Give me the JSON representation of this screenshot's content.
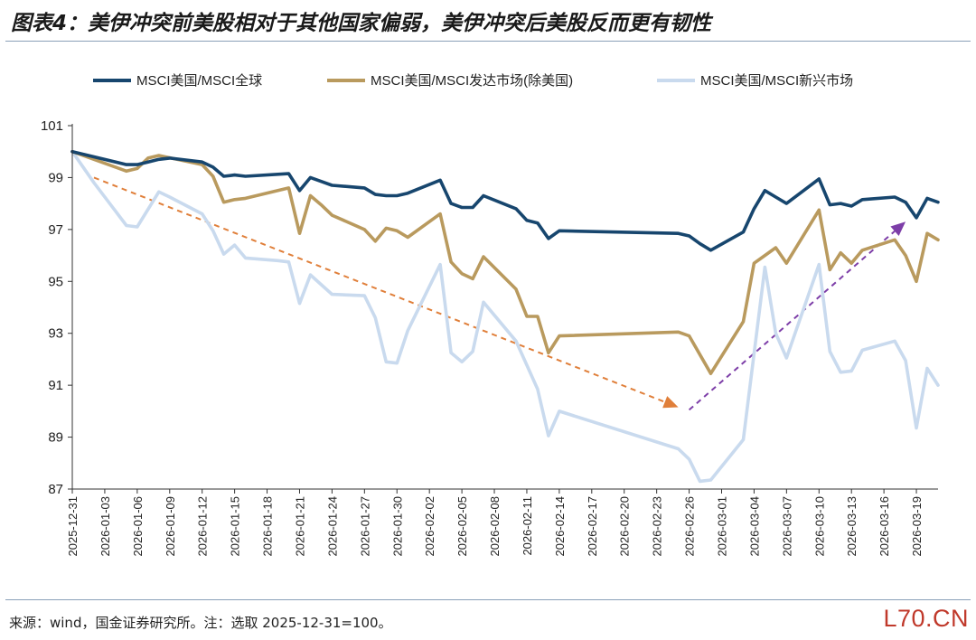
{
  "title": "图表4：美伊冲突前美股相对于其他国家偏弱，美伊冲突后美股反而更有韧性",
  "source": "来源：wind，国金证券研究所。注：选取 2025-12-31=100。",
  "watermark": "L70.CN",
  "chart_data": {
    "type": "line",
    "xlabel": "",
    "ylabel": "",
    "ylim": [
      87,
      101
    ],
    "yticks": [
      87,
      89,
      91,
      93,
      95,
      97,
      99,
      101
    ],
    "xlim": [
      "2025-12-31",
      "2026-03-21"
    ],
    "xticks": [
      "2025-12-31",
      "2026-01-03",
      "2026-01-06",
      "2026-01-09",
      "2026-01-12",
      "2026-01-15",
      "2026-01-18",
      "2026-01-21",
      "2026-01-24",
      "2026-01-27",
      "2026-01-30",
      "2026-02-02",
      "2026-02-05",
      "2026-02-08",
      "2026-02-11",
      "2026-02-14",
      "2026-02-17",
      "2026-02-20",
      "2026-02-23",
      "2026-02-26",
      "2026-03-01",
      "2026-03-04",
      "2026-03-07",
      "2026-03-10",
      "2026-03-13",
      "2026-03-16",
      "2026-03-19"
    ],
    "legend_position": "top",
    "grid": false,
    "series": [
      {
        "name": "MSCI美国/MSCI全球",
        "color": "#17466e",
        "points": [
          [
            "2025-12-31",
            100.0
          ],
          [
            "2026-01-05",
            99.5
          ],
          [
            "2026-01-06",
            99.5
          ],
          [
            "2026-01-07",
            99.6
          ],
          [
            "2026-01-08",
            99.7
          ],
          [
            "2026-01-09",
            99.75
          ],
          [
            "2026-01-12",
            99.6
          ],
          [
            "2026-01-13",
            99.4
          ],
          [
            "2026-01-14",
            99.05
          ],
          [
            "2026-01-15",
            99.1
          ],
          [
            "2026-01-16",
            99.05
          ],
          [
            "2026-01-20",
            99.15
          ],
          [
            "2026-01-21",
            98.5
          ],
          [
            "2026-01-22",
            99.0
          ],
          [
            "2026-01-23",
            98.85
          ],
          [
            "2026-01-24",
            98.7
          ],
          [
            "2026-01-27",
            98.6
          ],
          [
            "2026-01-28",
            98.35
          ],
          [
            "2026-01-29",
            98.3
          ],
          [
            "2026-01-30",
            98.3
          ],
          [
            "2026-01-31",
            98.4
          ],
          [
            "2026-02-03",
            98.9
          ],
          [
            "2026-02-04",
            98.0
          ],
          [
            "2026-02-05",
            97.85
          ],
          [
            "2026-02-06",
            97.85
          ],
          [
            "2026-02-07",
            98.3
          ],
          [
            "2026-02-10",
            97.8
          ],
          [
            "2026-02-11",
            97.35
          ],
          [
            "2026-02-12",
            97.25
          ],
          [
            "2026-02-13",
            96.65
          ],
          [
            "2026-02-14",
            96.95
          ],
          [
            "2026-02-25",
            96.85
          ],
          [
            "2026-02-26",
            96.75
          ],
          [
            "2026-02-27",
            96.45
          ],
          [
            "2026-02-28",
            96.2
          ],
          [
            "2026-03-03",
            96.9
          ],
          [
            "2026-03-04",
            97.8
          ],
          [
            "2026-03-05",
            98.5
          ],
          [
            "2026-03-06",
            98.25
          ],
          [
            "2026-03-07",
            98.0
          ],
          [
            "2026-03-10",
            98.95
          ],
          [
            "2026-03-11",
            97.95
          ],
          [
            "2026-03-12",
            98.0
          ],
          [
            "2026-03-13",
            97.9
          ],
          [
            "2026-03-14",
            98.15
          ],
          [
            "2026-03-17",
            98.25
          ],
          [
            "2026-03-18",
            98.05
          ],
          [
            "2026-03-19",
            97.45
          ],
          [
            "2026-03-20",
            98.2
          ],
          [
            "2026-03-21",
            98.05
          ]
        ]
      },
      {
        "name": "MSCI美国/MSCI发达市场(除美国)",
        "color": "#b99a5e",
        "points": [
          [
            "2025-12-31",
            100.0
          ],
          [
            "2026-01-05",
            99.25
          ],
          [
            "2026-01-06",
            99.35
          ],
          [
            "2026-01-07",
            99.75
          ],
          [
            "2026-01-08",
            99.85
          ],
          [
            "2026-01-12",
            99.5
          ],
          [
            "2026-01-13",
            99.05
          ],
          [
            "2026-01-14",
            98.05
          ],
          [
            "2026-01-15",
            98.15
          ],
          [
            "2026-01-16",
            98.2
          ],
          [
            "2026-01-20",
            98.6
          ],
          [
            "2026-01-21",
            96.85
          ],
          [
            "2026-01-22",
            98.3
          ],
          [
            "2026-01-23",
            97.95
          ],
          [
            "2026-01-24",
            97.55
          ],
          [
            "2026-01-27",
            97.0
          ],
          [
            "2026-01-28",
            96.55
          ],
          [
            "2026-01-29",
            97.05
          ],
          [
            "2026-01-30",
            96.95
          ],
          [
            "2026-01-31",
            96.7
          ],
          [
            "2026-02-03",
            97.6
          ],
          [
            "2026-02-04",
            95.75
          ],
          [
            "2026-02-05",
            95.3
          ],
          [
            "2026-02-06",
            95.1
          ],
          [
            "2026-02-07",
            95.95
          ],
          [
            "2026-02-10",
            94.7
          ],
          [
            "2026-02-11",
            93.65
          ],
          [
            "2026-02-12",
            93.65
          ],
          [
            "2026-02-13",
            92.25
          ],
          [
            "2026-02-14",
            92.9
          ],
          [
            "2026-02-25",
            93.05
          ],
          [
            "2026-02-26",
            92.9
          ],
          [
            "2026-02-28",
            91.45
          ],
          [
            "2026-03-03",
            93.45
          ],
          [
            "2026-03-04",
            95.7
          ],
          [
            "2026-03-05",
            96.0
          ],
          [
            "2026-03-06",
            96.3
          ],
          [
            "2026-03-07",
            95.7
          ],
          [
            "2026-03-10",
            97.75
          ],
          [
            "2026-03-11",
            95.45
          ],
          [
            "2026-03-12",
            96.1
          ],
          [
            "2026-03-13",
            95.7
          ],
          [
            "2026-03-14",
            96.2
          ],
          [
            "2026-03-17",
            96.6
          ],
          [
            "2026-03-18",
            96.0
          ],
          [
            "2026-03-19",
            95.0
          ],
          [
            "2026-03-20",
            96.85
          ],
          [
            "2026-03-21",
            96.6
          ]
        ]
      },
      {
        "name": "MSCI美国/MSCI新兴市场",
        "color": "#c9daee",
        "points": [
          [
            "2025-12-31",
            100.0
          ],
          [
            "2026-01-02",
            98.8
          ],
          [
            "2026-01-05",
            97.15
          ],
          [
            "2026-01-06",
            97.1
          ],
          [
            "2026-01-08",
            98.45
          ],
          [
            "2026-01-09",
            98.25
          ],
          [
            "2026-01-12",
            97.6
          ],
          [
            "2026-01-13",
            96.95
          ],
          [
            "2026-01-14",
            96.05
          ],
          [
            "2026-01-15",
            96.4
          ],
          [
            "2026-01-16",
            95.9
          ],
          [
            "2026-01-19",
            95.8
          ],
          [
            "2026-01-20",
            95.75
          ],
          [
            "2026-01-21",
            94.15
          ],
          [
            "2026-01-22",
            95.25
          ],
          [
            "2026-01-24",
            94.5
          ],
          [
            "2026-01-27",
            94.45
          ],
          [
            "2026-01-28",
            93.6
          ],
          [
            "2026-01-29",
            91.9
          ],
          [
            "2026-01-30",
            91.85
          ],
          [
            "2026-01-31",
            93.1
          ],
          [
            "2026-02-03",
            95.65
          ],
          [
            "2026-02-04",
            92.25
          ],
          [
            "2026-02-05",
            91.9
          ],
          [
            "2026-02-06",
            92.3
          ],
          [
            "2026-02-07",
            94.2
          ],
          [
            "2026-02-10",
            92.7
          ],
          [
            "2026-02-12",
            90.85
          ],
          [
            "2026-02-13",
            89.05
          ],
          [
            "2026-02-14",
            90.0
          ],
          [
            "2026-02-25",
            88.55
          ],
          [
            "2026-02-26",
            88.15
          ],
          [
            "2026-02-27",
            87.3
          ],
          [
            "2026-02-28",
            87.35
          ],
          [
            "2026-03-03",
            88.9
          ],
          [
            "2026-03-05",
            95.55
          ],
          [
            "2026-03-06",
            93.0
          ],
          [
            "2026-03-07",
            92.05
          ],
          [
            "2026-03-10",
            95.65
          ],
          [
            "2026-03-11",
            92.3
          ],
          [
            "2026-03-12",
            91.5
          ],
          [
            "2026-03-13",
            91.55
          ],
          [
            "2026-03-14",
            92.35
          ],
          [
            "2026-03-17",
            92.7
          ],
          [
            "2026-03-18",
            91.95
          ],
          [
            "2026-03-19",
            89.35
          ],
          [
            "2026-03-20",
            91.65
          ],
          [
            "2026-03-21",
            91.0
          ]
        ]
      }
    ],
    "annotations": [
      {
        "type": "dashed-arrow",
        "color": "#e07f3a",
        "from": [
          "2026-01-02",
          99.0
        ],
        "to": [
          "2026-02-25",
          90.15
        ]
      },
      {
        "type": "dashed-arrow",
        "color": "#7d3ea8",
        "from": [
          "2026-02-26",
          90.05
        ],
        "to": [
          "2026-03-18",
          97.3
        ]
      }
    ]
  }
}
